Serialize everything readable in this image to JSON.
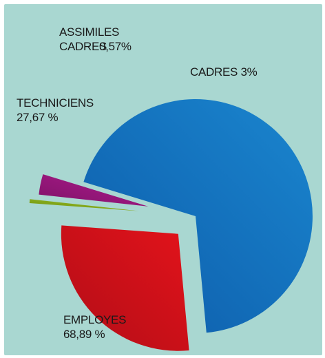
{
  "chart_data": {
    "type": "pie",
    "title": "",
    "slices": [
      {
        "name": "EMPLOYES",
        "value_label": "68,89 %",
        "value": 68.89,
        "color": "#1a86cf",
        "color_dark": "#0d5aa8"
      },
      {
        "name": "TECHNICIENS",
        "value_label": "27,67 %",
        "value": 27.67,
        "color": "#e3131b",
        "color_dark": "#b10d16"
      },
      {
        "name": "ASSIMILES CADRES",
        "value_label": "0,57%",
        "value": 0.57,
        "color": "#9cc320",
        "color_dark": "#6d8f14"
      },
      {
        "name": "CADRES",
        "value_label": "3%",
        "value": 3,
        "color": "#b01c8f",
        "color_dark": "#7e1267"
      }
    ],
    "legend": "none",
    "background": "#a9d7d1"
  }
}
